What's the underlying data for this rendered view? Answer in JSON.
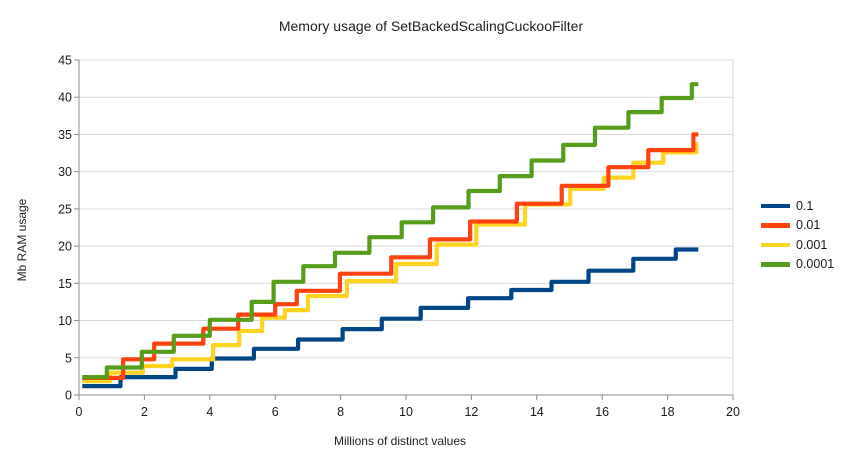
{
  "title": "Memory usage of SetBackedScalingCuckooFilter",
  "chart_data": {
    "type": "line",
    "subtype": "step-staircase",
    "title": "Memory usage of SetBackedScalingCuckooFilter",
    "xlabel": "Millions of distinct values",
    "ylabel": "Mb RAM usage",
    "xlim": [
      0,
      20
    ],
    "ylim": [
      0,
      45
    ],
    "x_ticks": [
      0,
      2,
      4,
      6,
      8,
      10,
      12,
      14,
      16,
      18,
      20
    ],
    "y_ticks": [
      0,
      5,
      10,
      15,
      20,
      25,
      30,
      35,
      40,
      45
    ],
    "grid": "horizontal",
    "legend_position": "right",
    "x_start": 0.1,
    "x_end": 18.94,
    "colors": {
      "grid": "#d9d9d9",
      "axis": "#8c8c8c",
      "text": "#1a1a1a"
    },
    "series": [
      {
        "name": "0.1",
        "color": "#004586",
        "z": 0,
        "steps": [
          [
            0,
            1.2
          ],
          [
            1.27,
            2.4
          ],
          [
            2.95,
            3.5
          ],
          [
            4.06,
            4.9
          ],
          [
            5.35,
            6.2
          ],
          [
            6.7,
            7.45
          ],
          [
            8.06,
            8.85
          ],
          [
            9.26,
            10.25
          ],
          [
            10.45,
            11.7
          ],
          [
            11.9,
            13.0
          ],
          [
            13.22,
            14.1
          ],
          [
            14.45,
            15.2
          ],
          [
            15.58,
            16.7
          ],
          [
            16.95,
            18.3
          ],
          [
            18.25,
            19.55
          ]
        ]
      },
      {
        "name": "0.01",
        "color": "#FF420E",
        "z": 2,
        "steps": [
          [
            0,
            2.3
          ],
          [
            1.35,
            4.8
          ],
          [
            2.3,
            6.9
          ],
          [
            3.8,
            8.9
          ],
          [
            4.87,
            10.8
          ],
          [
            6.0,
            12.2
          ],
          [
            6.66,
            14.0
          ],
          [
            7.98,
            16.3
          ],
          [
            9.55,
            18.5
          ],
          [
            10.73,
            20.9
          ],
          [
            11.96,
            23.3
          ],
          [
            13.39,
            25.7
          ],
          [
            14.76,
            28.1
          ],
          [
            16.19,
            30.6
          ],
          [
            17.41,
            32.9
          ],
          [
            18.79,
            35.0
          ]
        ]
      },
      {
        "name": "0.001",
        "color": "#FFD320",
        "z": 1,
        "steps": [
          [
            0,
            1.85
          ],
          [
            0.95,
            3.0
          ],
          [
            1.95,
            3.9
          ],
          [
            2.85,
            4.8
          ],
          [
            4.1,
            6.7
          ],
          [
            4.9,
            8.6
          ],
          [
            5.6,
            10.4
          ],
          [
            6.3,
            11.4
          ],
          [
            7.0,
            13.3
          ],
          [
            8.19,
            15.3
          ],
          [
            9.7,
            17.6
          ],
          [
            10.94,
            20.2
          ],
          [
            12.15,
            22.9
          ],
          [
            13.64,
            25.6
          ],
          [
            15.02,
            27.7
          ],
          [
            16.05,
            29.2
          ],
          [
            16.95,
            31.2
          ],
          [
            17.87,
            32.6
          ],
          [
            18.88,
            33.7
          ]
        ]
      },
      {
        "name": "0.0001",
        "color": "#579D1C",
        "z": 3,
        "steps": [
          [
            0,
            2.4
          ],
          [
            0.85,
            3.7
          ],
          [
            1.92,
            5.8
          ],
          [
            2.9,
            7.95
          ],
          [
            4.0,
            10.1
          ],
          [
            5.28,
            12.5
          ],
          [
            5.95,
            15.2
          ],
          [
            6.86,
            17.3
          ],
          [
            7.83,
            19.1
          ],
          [
            8.88,
            21.2
          ],
          [
            9.87,
            23.2
          ],
          [
            10.83,
            25.2
          ],
          [
            11.91,
            27.4
          ],
          [
            12.87,
            29.4
          ],
          [
            13.84,
            31.5
          ],
          [
            14.81,
            33.6
          ],
          [
            15.78,
            35.9
          ],
          [
            16.8,
            38.0
          ],
          [
            17.82,
            39.9
          ],
          [
            18.74,
            41.75
          ]
        ]
      }
    ]
  }
}
